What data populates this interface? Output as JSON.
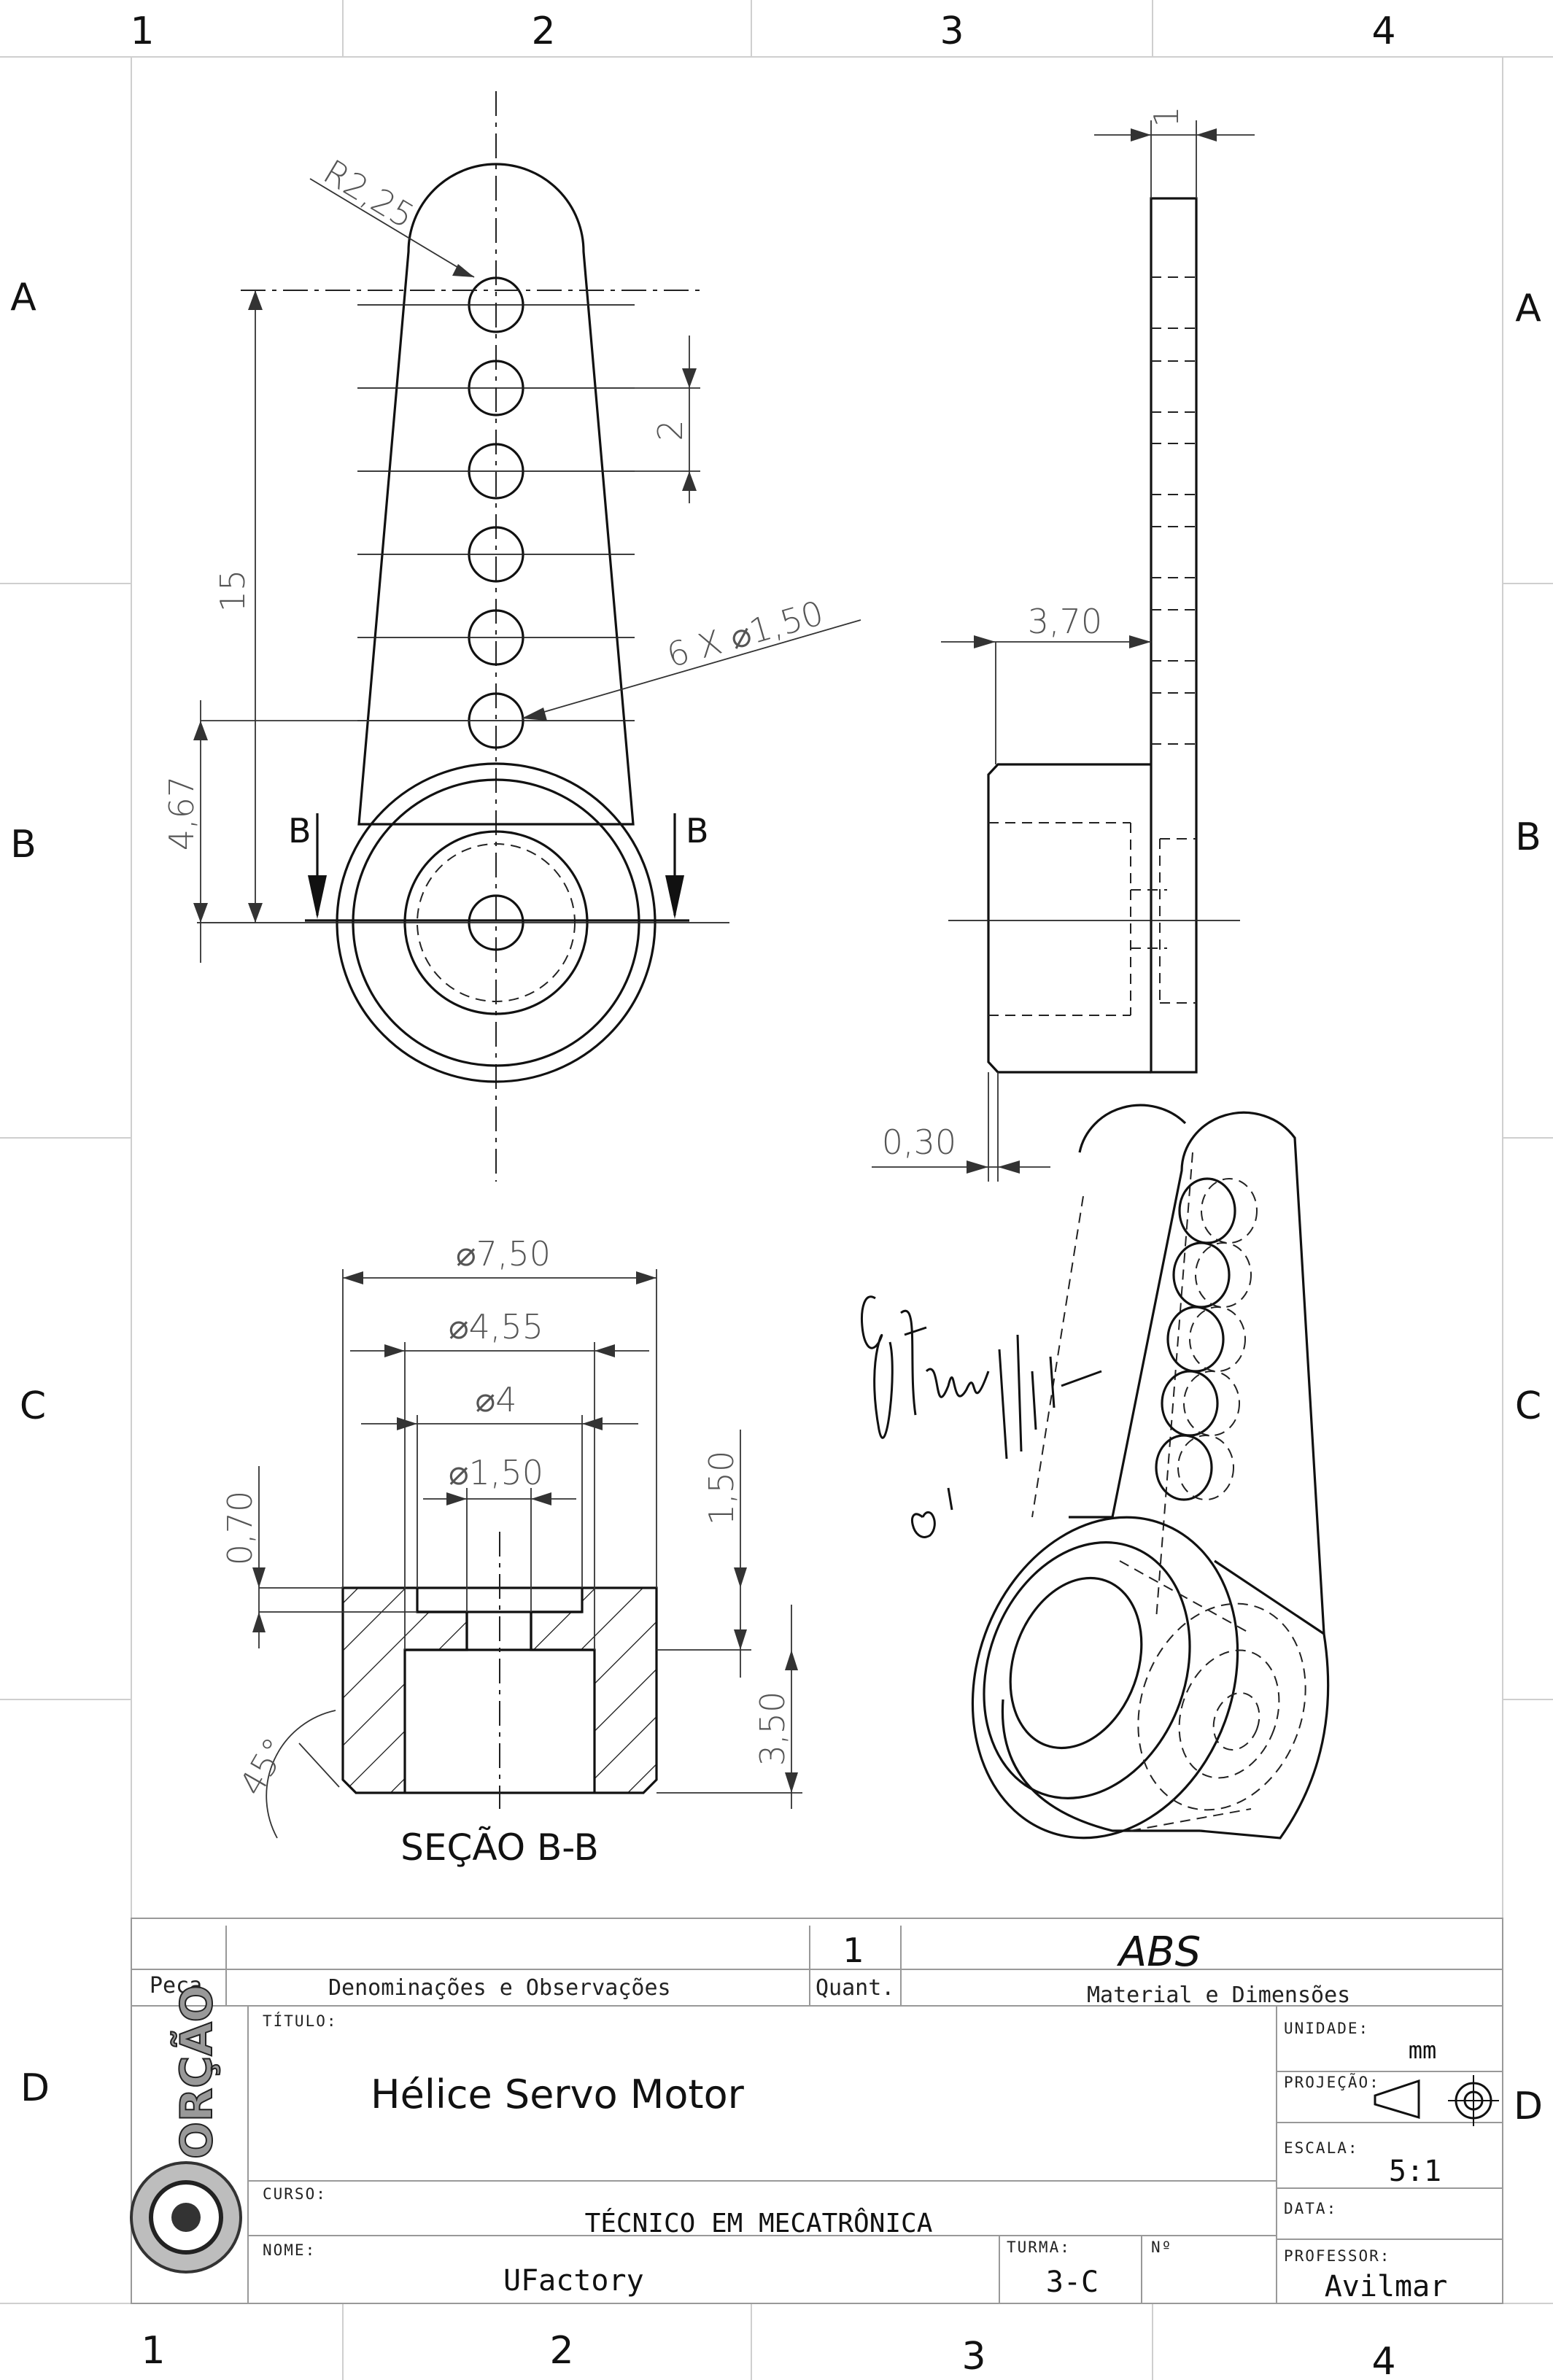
{
  "zones": {
    "columns": [
      "1",
      "2",
      "3",
      "4"
    ],
    "rows": [
      "A",
      "B",
      "C",
      "D"
    ]
  },
  "dimensions": {
    "fillet_radius": "R2,25",
    "thickness": "1",
    "hole_pitch": "2",
    "hole_span": "15",
    "hole_count_dia": "6 X ⌀1,50",
    "hub_offset": "4,67",
    "hub_height": "3,70",
    "chamfer": "0,30",
    "outer_dia": "⌀7,50",
    "counterbore_dia": "⌀4,55",
    "bore_dia": "⌀4",
    "shaft_hole_dia": "⌀1,50",
    "top_depth": "0,70",
    "step_depth": "1,50",
    "body_depth": "3,50",
    "chamfer_angle": "45°"
  },
  "section_labels": {
    "cut_left": "B",
    "cut_right": "B",
    "section_title": "SEÇÃO B-B"
  },
  "title_block": {
    "quantity": "1",
    "material": "ABS",
    "col_piece": "Peça",
    "col_names": "Denominações e Observações",
    "col_quantity": "Quant.",
    "col_material": "Material e Dimensões",
    "title_label": "TÍTULO:",
    "title": "Hélice Servo Motor",
    "unit_label": "UNIDADE:",
    "unit": "mm",
    "projection_label": "PROJEÇÃO:",
    "scale_label": "ESCALA:",
    "scale": "5:1",
    "course_label": "CURSO:",
    "course": "TÉCNICO EM MECATRÔNICA",
    "date_label": "DATA:",
    "name_label": "NOME:",
    "name": "UFactory",
    "class_label": "TURMA:",
    "class": "3-C",
    "number_label": "Nº",
    "professor_label": "PROFESSOR:",
    "professor": "Avilmar",
    "logo_text": "ORÇÃO"
  }
}
